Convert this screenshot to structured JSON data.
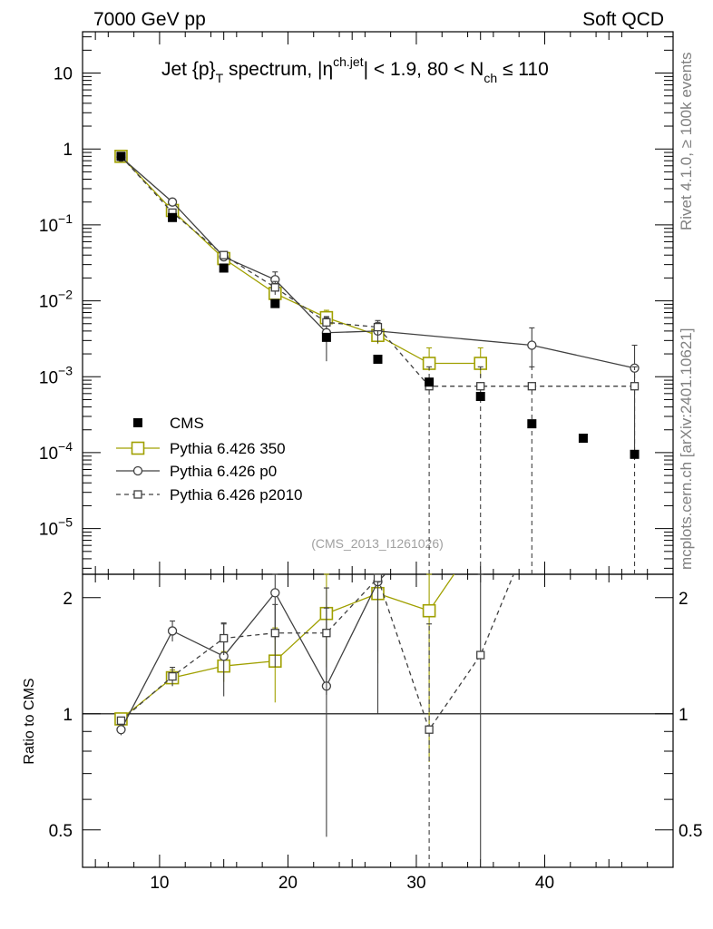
{
  "header": {
    "left": "7000 GeV pp",
    "right": "Soft QCD"
  },
  "side_labels": {
    "rivet": "Rivet 4.1.0, ≥ 100k events",
    "mcplots": "mcplots.cern.ch [arXiv:2401.10621]"
  },
  "watermark": "(CMS_2013_I1261026)",
  "colors": {
    "cms": "#000000",
    "pythia350": "#a0a000",
    "p0": "#404040",
    "p2010": "#404040",
    "axis": "#000000",
    "side_text": "#808080"
  },
  "chart_data": {
    "type": "scatter",
    "title_parts": {
      "a": "Jet {p}",
      "a_sub": "T",
      "b": " spectrum, |η",
      "b_sup": "ch.jet",
      "c": "| < 1.9, 80 < N",
      "c_sub": "ch",
      "d": " ≤ 110"
    },
    "x_range": [
      4,
      50
    ],
    "x_ticks": [
      10,
      20,
      30,
      40
    ],
    "y_range": [
      2.5e-06,
      35
    ],
    "y_tick_labels": [
      {
        "value": 10,
        "base": "10",
        "exp": ""
      },
      {
        "value": 1,
        "base": "1",
        "exp": ""
      },
      {
        "value": 0.1,
        "base": "10",
        "exp": "−1"
      },
      {
        "value": 0.01,
        "base": "10",
        "exp": "−2"
      },
      {
        "value": 0.001,
        "base": "10",
        "exp": "−3"
      },
      {
        "value": 0.0001,
        "base": "10",
        "exp": "−4"
      },
      {
        "value": 1e-05,
        "base": "10",
        "exp": "−5"
      }
    ],
    "ratio_label": "Ratio to CMS",
    "ratio_range": [
      0.4,
      2.3
    ],
    "ratio_ticks": [
      {
        "value": 0.5,
        "label": "0.5"
      },
      {
        "value": 1,
        "label": "1"
      },
      {
        "value": 2,
        "label": "2"
      }
    ],
    "series": [
      {
        "name": "CMS",
        "style": "data",
        "x": [
          7,
          11,
          15,
          19,
          23,
          27,
          31,
          35,
          39,
          43,
          47
        ],
        "y": [
          0.8,
          0.125,
          0.027,
          0.0092,
          0.0033,
          0.0017,
          0.00085,
          0.00055,
          0.00024,
          0.000155,
          9.5e-05
        ],
        "yerr": [
          0.03,
          0.005,
          0.001,
          0.0005,
          0.0002,
          0.0001,
          5e-05,
          4e-05,
          2e-05,
          1e-05,
          1e-05
        ]
      },
      {
        "name": "Pythia 6.426 350",
        "style": "open-square-large",
        "x": [
          7,
          11,
          15,
          19,
          23,
          27,
          31,
          35
        ],
        "xerr": [
          2,
          2,
          2,
          2,
          2,
          2,
          2,
          2
        ],
        "y": [
          0.8,
          0.155,
          0.036,
          0.0125,
          0.006,
          0.0035,
          0.0015,
          0.0015
        ],
        "yerr_lo": [
          0.02,
          0.005,
          0.003,
          0.002,
          0.001,
          0.0008,
          0.0003,
          0.0005
        ],
        "yerr_hi": [
          0.02,
          0.005,
          0.003,
          0.002,
          0.0015,
          0.0012,
          0.0009,
          0.0009
        ],
        "ratio": [
          0.97,
          1.24,
          1.33,
          1.37,
          1.82,
          2.05,
          1.85,
          2.9
        ],
        "ratio_err": [
          0.02,
          0.06,
          0.12,
          0.3,
          0.5,
          0.7,
          1.1,
          1.2
        ]
      },
      {
        "name": "Pythia 6.426 p0",
        "style": "open-circle",
        "x": [
          7,
          11,
          15,
          19,
          23,
          27,
          39,
          47
        ],
        "y": [
          0.78,
          0.2,
          0.038,
          0.019,
          0.0038,
          0.004,
          0.0026,
          0.0013
        ],
        "yerr_lo": [
          0.02,
          0.01,
          0.003,
          0.004,
          0.0022,
          0.0012,
          0.0013,
          0.0012
        ],
        "yerr_hi": [
          0.02,
          0.01,
          0.003,
          0.005,
          0.0022,
          0.0012,
          0.0018,
          0.0013
        ],
        "ratio_x": [
          7,
          11,
          15,
          19,
          23,
          27,
          31
        ],
        "ratio": [
          0.91,
          1.64,
          1.41,
          2.06,
          1.18,
          2.2,
          3.0
        ],
        "ratio_err": [
          0.03,
          0.1,
          0.3,
          0.5,
          0.7,
          1.2,
          0
        ]
      },
      {
        "name": "Pythia 6.426 p2010",
        "style": "open-square-small",
        "x": [
          7,
          11,
          15,
          19,
          23,
          27,
          31,
          35,
          39,
          47
        ],
        "y": [
          0.8,
          0.145,
          0.04,
          0.015,
          0.0052,
          0.0045,
          0.00075,
          0.00075,
          0.00075,
          0.00075
        ],
        "yerr_lo": [
          0.02,
          0.005,
          0.004,
          0.003,
          0.001,
          0.001,
          0.00075,
          0.00075,
          0.00075,
          0.00075
        ],
        "yerr_hi": [
          0.02,
          0.005,
          0.004,
          0.003,
          0.001,
          0.001,
          0.0006,
          0.0006,
          0.0006,
          0.0006
        ],
        "ratio": [
          0.96,
          1.25,
          1.57,
          1.62,
          1.62,
          2.25,
          0.91,
          1.42,
          3.0,
          3.0
        ],
        "ratio_err": [
          0.02,
          0.07,
          0.15,
          0.3,
          0.5,
          0.8,
          0.8,
          1.0,
          0,
          0
        ]
      }
    ]
  }
}
